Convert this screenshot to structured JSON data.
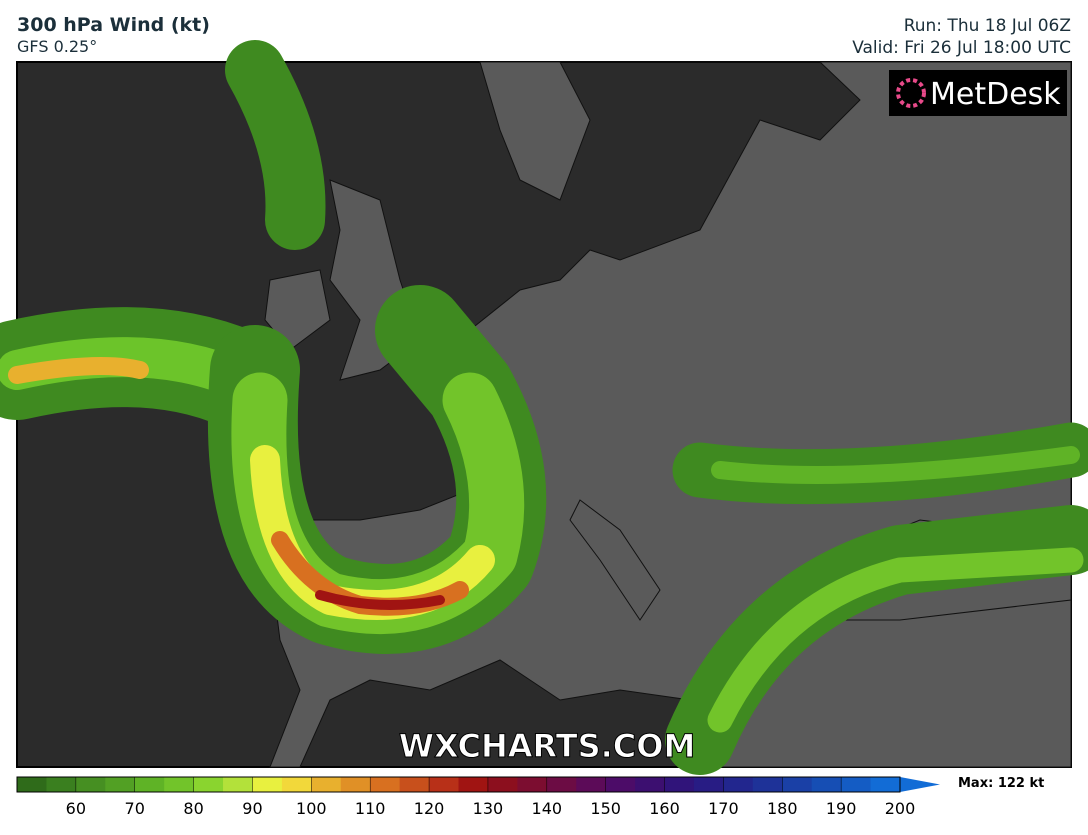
{
  "header": {
    "title": "300 hPa Wind (kt)",
    "subtitle": "GFS 0.25°",
    "run": "Run: Thu 18 Jul 06Z",
    "valid": "Valid: Fri 26 Jul 18:00 UTC"
  },
  "logo": "MetDesk",
  "watermark": "WXCHARTS.COM",
  "legend": {
    "colors": [
      "#2f6b1a",
      "#3a7f1f",
      "#468f22",
      "#52a024",
      "#5fb326",
      "#72c42a",
      "#8ad42f",
      "#b3e13a",
      "#e8f03f",
      "#f2d83a",
      "#e8b02e",
      "#e09026",
      "#d87020",
      "#c8501c",
      "#b83018",
      "#a01412",
      "#8c0f1e",
      "#7c0d30",
      "#6c0c44",
      "#5c0b58",
      "#4c0c68",
      "#3c0f70",
      "#30147a",
      "#281c84",
      "#22268e",
      "#1e3298",
      "#1a40a6",
      "#164eb4",
      "#145cc4",
      "#126cd6"
    ],
    "ticks": [
      60,
      70,
      80,
      90,
      100,
      110,
      120,
      130,
      140,
      150,
      160,
      170,
      180,
      190,
      200
    ],
    "max_label": "Max: 122 kt"
  }
}
